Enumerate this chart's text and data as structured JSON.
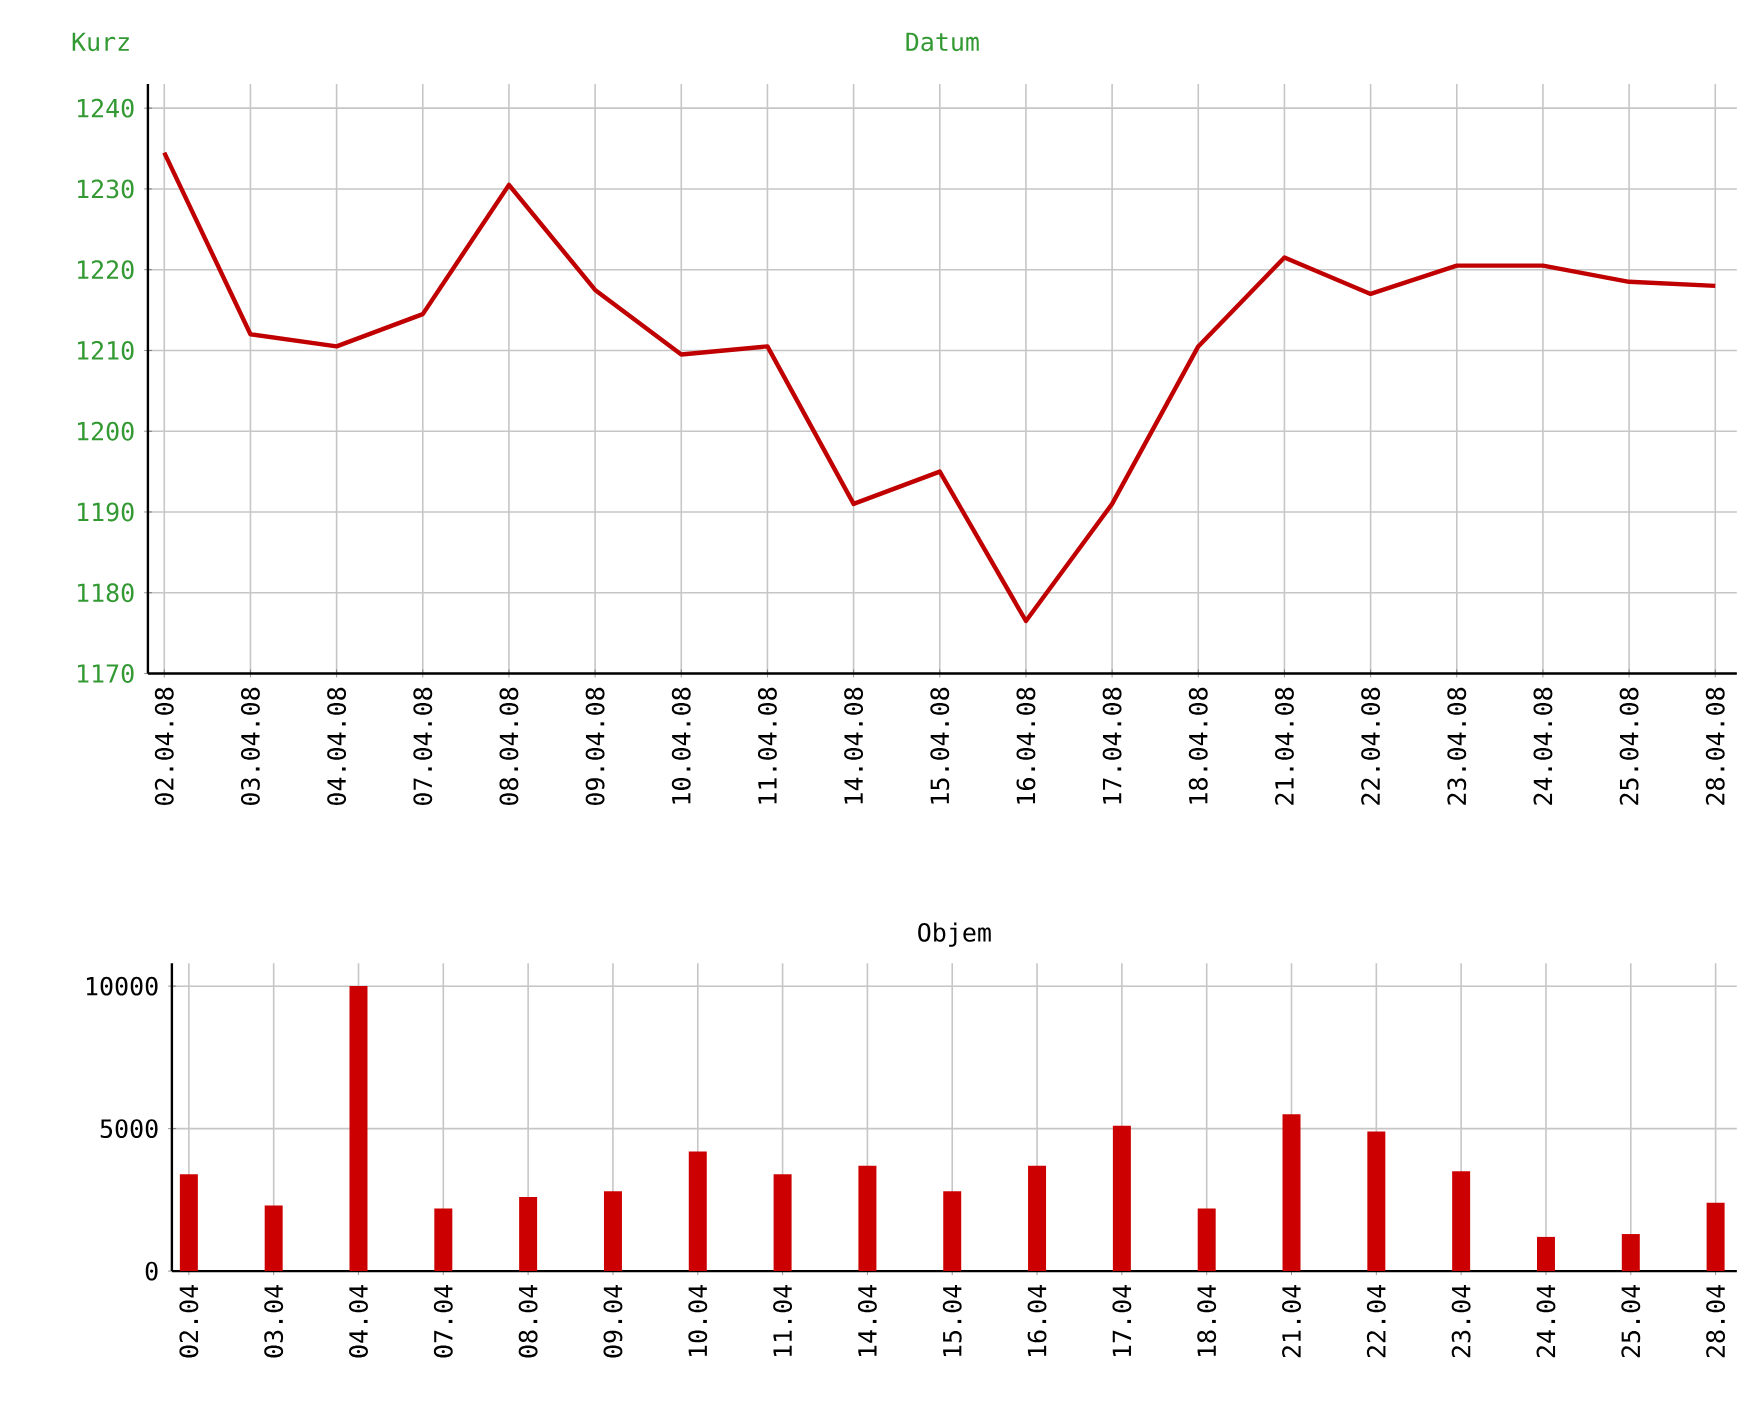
{
  "chart_data": [
    {
      "type": "line",
      "xlabel": "Datum",
      "ylabel": "Kurz",
      "categories": [
        "02.04.08",
        "03.04.08",
        "04.04.08",
        "07.04.08",
        "08.04.08",
        "09.04.08",
        "10.04.08",
        "11.04.08",
        "14.04.08",
        "15.04.08",
        "16.04.08",
        "17.04.08",
        "18.04.08",
        "21.04.08",
        "22.04.08",
        "23.04.08",
        "24.04.08",
        "25.04.08",
        "28.04.08"
      ],
      "series": [
        {
          "color": "#c00000",
          "values": [
            1234.5,
            1212,
            1210.5,
            1214.5,
            1230.5,
            1217.5,
            1209.5,
            1210.5,
            1191,
            1195,
            1176.5,
            1191,
            1210.5,
            1221.5,
            1217,
            1220.5,
            1220.5,
            1218.5,
            1218
          ]
        }
      ],
      "ylim": [
        1170,
        1243
      ],
      "yticks": [
        1170,
        1180,
        1190,
        1200,
        1210,
        1220,
        1230,
        1240
      ],
      "grid": true,
      "marker": "none",
      "line_style": "solid"
    },
    {
      "type": "bar",
      "title": "Objem",
      "categories": [
        "02.04",
        "03.04",
        "04.04",
        "07.04",
        "08.04",
        "09.04",
        "10.04",
        "11.04",
        "14.04",
        "15.04",
        "16.04",
        "17.04",
        "18.04",
        "21.04",
        "22.04",
        "23.04",
        "24.04",
        "25.04",
        "28.04"
      ],
      "series": [
        {
          "color": "#cc0000",
          "values": [
            3400,
            2300,
            10000,
            2200,
            2600,
            2800,
            4200,
            3400,
            3700,
            2800,
            3700,
            5100,
            2200,
            5500,
            4900,
            3500,
            1200,
            1300,
            2400
          ]
        }
      ],
      "ylim": [
        0,
        10800
      ],
      "yticks": [
        0,
        5000,
        10000
      ],
      "grid": true
    }
  ]
}
